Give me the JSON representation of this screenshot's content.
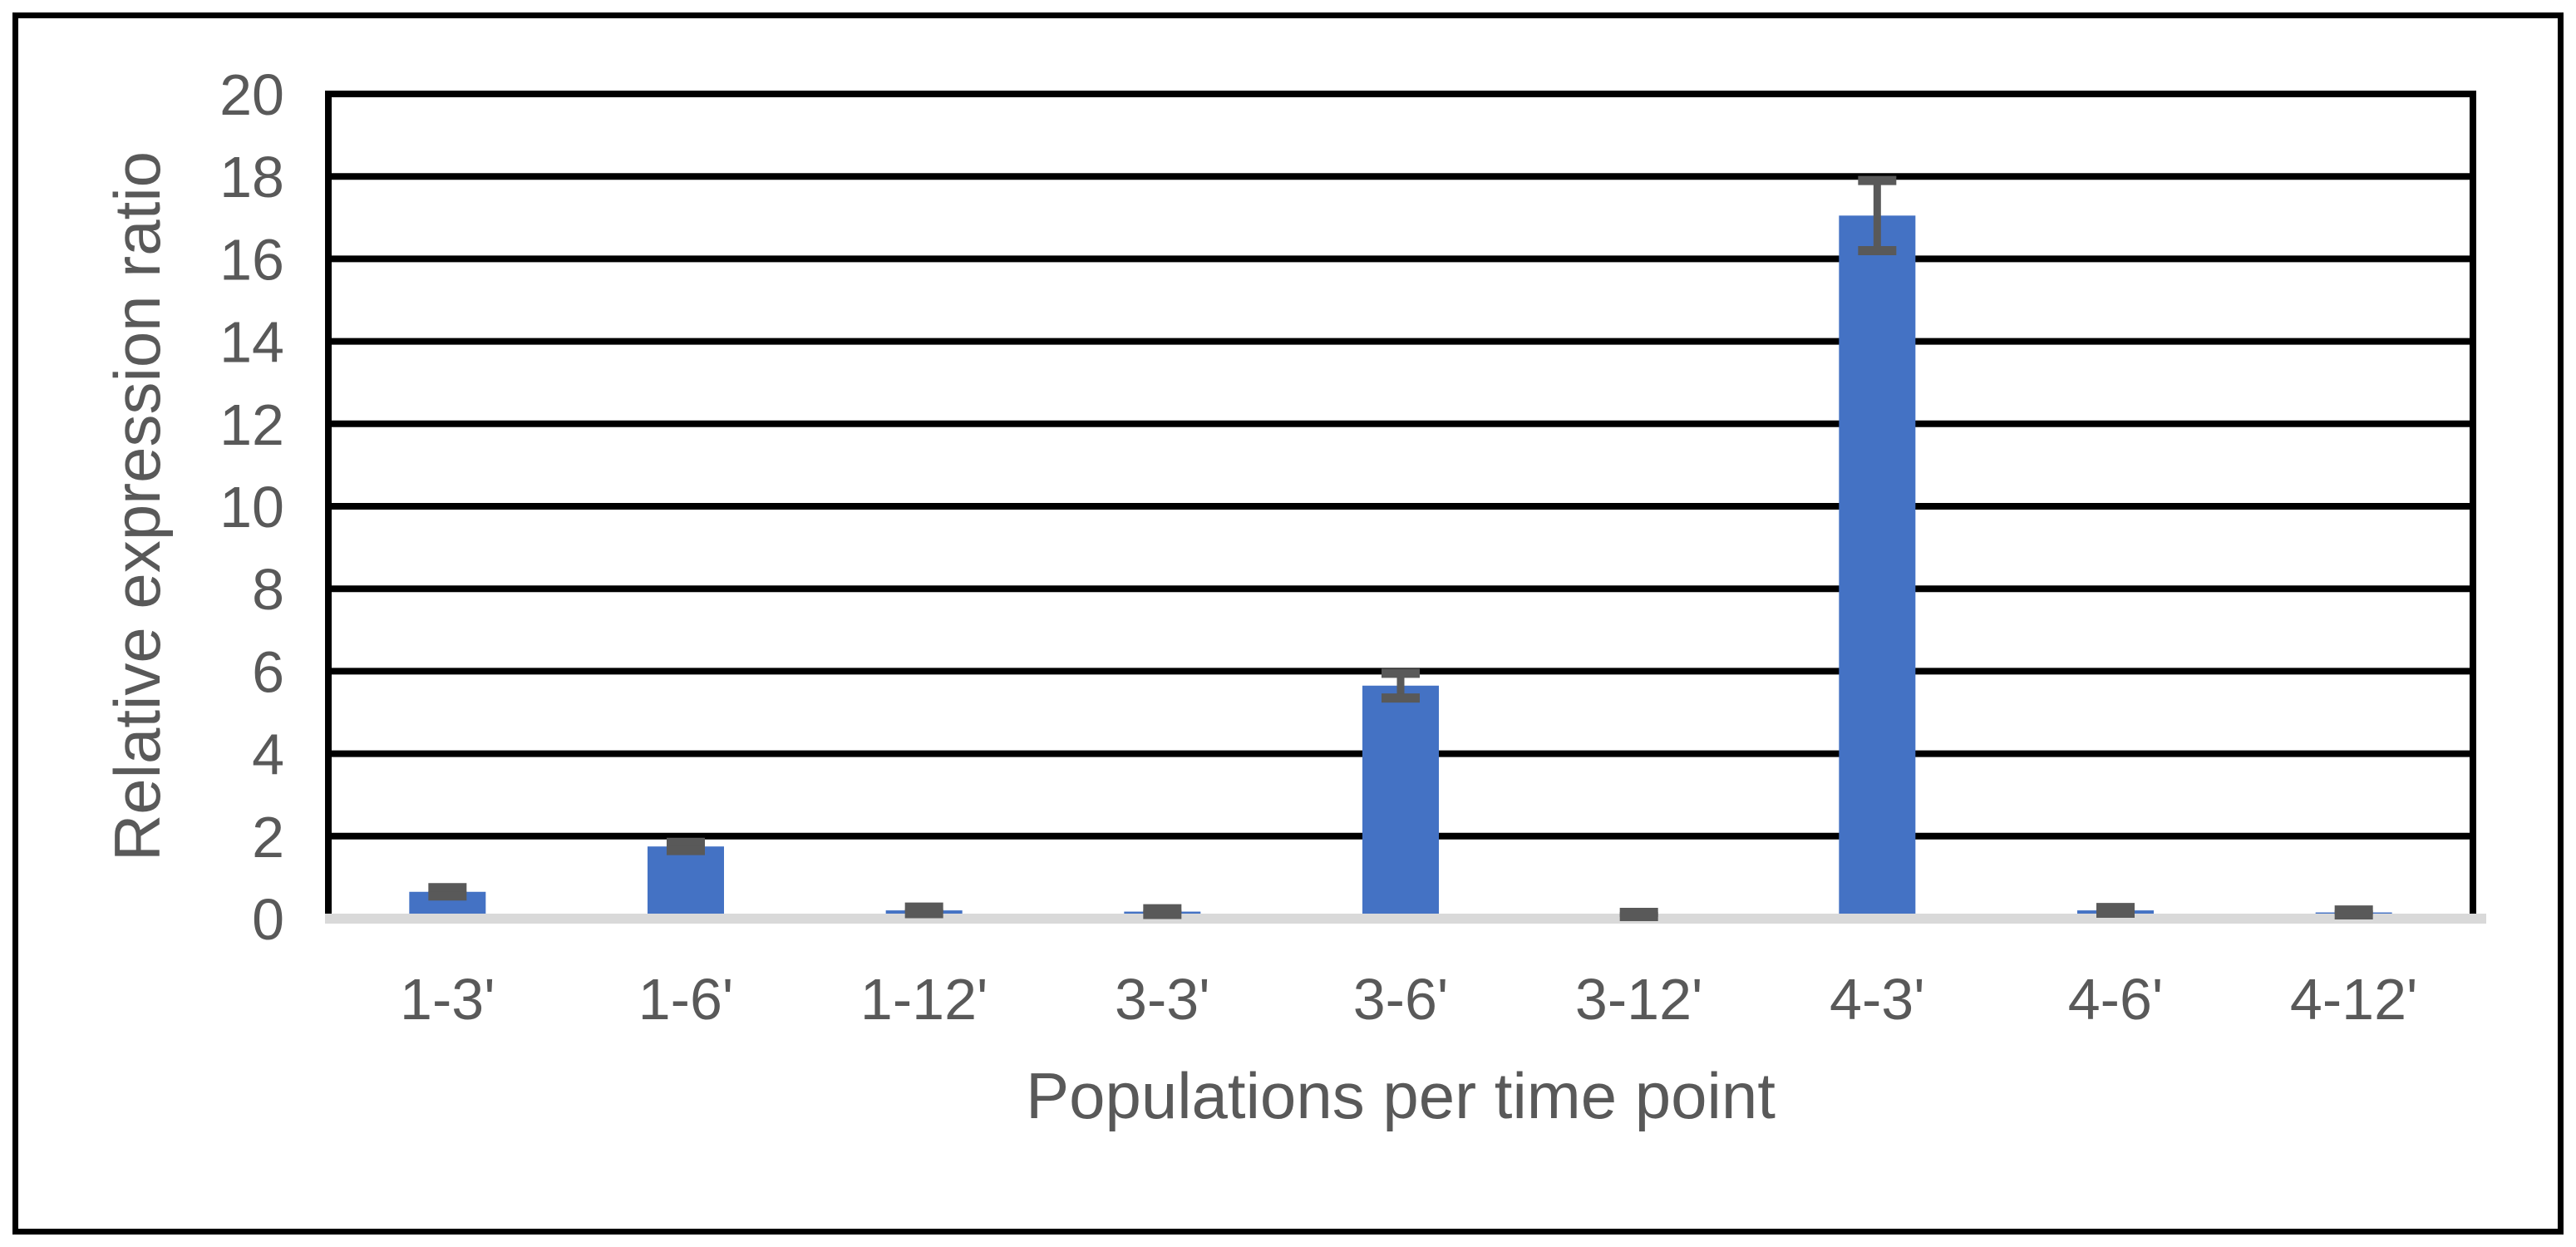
{
  "figure": {
    "background": "#FFFFFF"
  },
  "chart_data": {
    "type": "bar",
    "title": "",
    "xlabel": "Populations per time point",
    "ylabel": "Relative expression ratio",
    "categories": [
      "1-3'",
      "1-6'",
      "1-12'",
      "3-3'",
      "3-6'",
      "3-12'",
      "4-3'",
      "4-6'",
      "4-12'"
    ],
    "series": [
      {
        "name": "Relative expression ratio",
        "values": [
          0.65,
          1.75,
          0.2,
          0.17,
          5.65,
          0.1,
          17.05,
          0.2,
          0.15
        ],
        "error_bars": [
          0.1,
          0.1,
          0.08,
          0.07,
          0.3,
          0.05,
          0.85,
          0.07,
          0.06
        ]
      }
    ],
    "ylim": [
      0,
      20
    ],
    "yticks": [
      0,
      2,
      4,
      6,
      8,
      10,
      12,
      14,
      16,
      18,
      20
    ],
    "grid": "horizontal",
    "legend": "none",
    "colors": {
      "bar": "#4472C4",
      "error_bar": "#595959",
      "tick_label": "#595959",
      "axis_title": "#595959",
      "gridline": "#000000",
      "axis_line": "#000000",
      "baseline_band": "#D9D9D9",
      "figure_border": "#000000"
    }
  }
}
